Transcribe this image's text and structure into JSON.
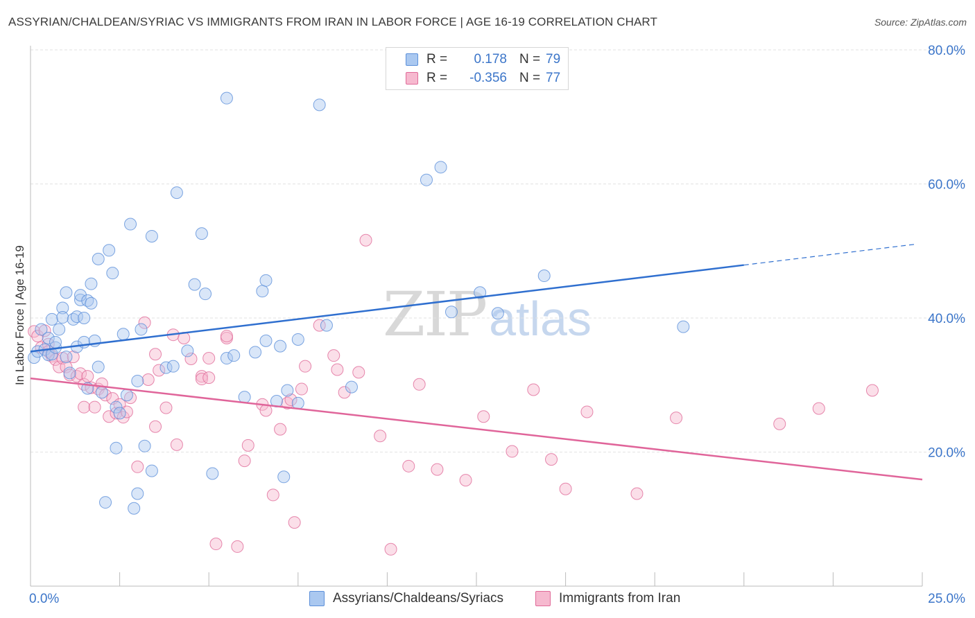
{
  "title": "ASSYRIAN/CHALDEAN/SYRIAC VS IMMIGRANTS FROM IRAN IN LABOR FORCE | AGE 16-19 CORRELATION CHART",
  "source": "Source: ZipAtlas.com",
  "watermark": {
    "zip": "ZIP",
    "atlas": "atlas"
  },
  "colors": {
    "series_blue": "#5b8fd9",
    "series_blue_fill": "#aac8f0",
    "series_pink": "#e06a98",
    "series_pink_fill": "#f6b9cf",
    "blue_line": "#2f6fcf",
    "pink_line": "#e0659a",
    "grid": "#e2e2e2",
    "tick_label": "#3b75c9"
  },
  "legend_top": {
    "rows": [
      {
        "r_label": "R =",
        "r_value": "0.178",
        "n_label": "N =",
        "n_value": "79"
      },
      {
        "r_label": "R =",
        "r_value": "-0.356",
        "n_label": "N =",
        "n_value": "77"
      }
    ]
  },
  "legend_bottom": [
    "Assyrians/Chaldeans/Syriacs",
    "Immigrants from Iran"
  ],
  "chart_data": {
    "type": "scatter",
    "title": "ASSYRIAN/CHALDEAN/SYRIAC VS IMMIGRANTS FROM IRAN IN LABOR FORCE | AGE 16-19 CORRELATION CHART",
    "xlabel": "",
    "ylabel": "In Labor Force | Age 16-19",
    "xlim": [
      0,
      25
    ],
    "ylim": [
      0,
      80
    ],
    "x_tick_labels": [
      "0.0%",
      "25.0%"
    ],
    "y_ticks": [
      20,
      40,
      60,
      80
    ],
    "y_tick_labels": [
      "20.0%",
      "40.0%",
      "60.0%",
      "80.0%"
    ],
    "grid": true,
    "legend_position": "top-center",
    "series": [
      {
        "name": "Assyrians/Chaldeans/Syriacs",
        "R": 0.178,
        "N": 79,
        "trend": {
          "x0": 0,
          "y0": 35.0,
          "x1": 20,
          "y1": 47.9,
          "dashed_to_x": 24.8,
          "dashed_to_y": 51.0
        },
        "points": [
          [
            0.1,
            34.1
          ],
          [
            0.2,
            35.0
          ],
          [
            0.3,
            38.3
          ],
          [
            0.4,
            35.3
          ],
          [
            0.5,
            37.0
          ],
          [
            0.5,
            34.5
          ],
          [
            0.6,
            39.8
          ],
          [
            0.6,
            34.6
          ],
          [
            0.7,
            35.6
          ],
          [
            0.7,
            36.4
          ],
          [
            0.8,
            38.3
          ],
          [
            0.9,
            41.5
          ],
          [
            0.9,
            40.1
          ],
          [
            1.0,
            43.8
          ],
          [
            1.0,
            34.2
          ],
          [
            1.1,
            31.8
          ],
          [
            1.2,
            39.8
          ],
          [
            1.3,
            40.2
          ],
          [
            1.3,
            35.7
          ],
          [
            1.4,
            42.7
          ],
          [
            1.4,
            43.4
          ],
          [
            1.5,
            40.0
          ],
          [
            1.5,
            36.4
          ],
          [
            1.6,
            42.6
          ],
          [
            1.6,
            29.5
          ],
          [
            1.7,
            45.1
          ],
          [
            1.7,
            42.2
          ],
          [
            1.8,
            36.6
          ],
          [
            1.9,
            48.8
          ],
          [
            1.9,
            32.7
          ],
          [
            2.0,
            28.9
          ],
          [
            2.1,
            12.5
          ],
          [
            2.2,
            50.1
          ],
          [
            2.3,
            46.7
          ],
          [
            2.4,
            20.6
          ],
          [
            2.4,
            26.7
          ],
          [
            2.5,
            25.8
          ],
          [
            2.6,
            37.6
          ],
          [
            2.7,
            28.5
          ],
          [
            2.8,
            54.0
          ],
          [
            2.9,
            11.6
          ],
          [
            3.0,
            30.6
          ],
          [
            3.0,
            13.8
          ],
          [
            3.1,
            38.3
          ],
          [
            3.2,
            20.9
          ],
          [
            3.4,
            52.2
          ],
          [
            3.4,
            17.2
          ],
          [
            3.8,
            32.6
          ],
          [
            4.0,
            32.8
          ],
          [
            4.1,
            58.7
          ],
          [
            4.4,
            35.1
          ],
          [
            4.6,
            45.0
          ],
          [
            4.8,
            52.6
          ],
          [
            4.9,
            43.6
          ],
          [
            5.1,
            16.8
          ],
          [
            5.5,
            34.0
          ],
          [
            5.5,
            72.8
          ],
          [
            5.7,
            34.4
          ],
          [
            6.0,
            28.2
          ],
          [
            6.3,
            34.9
          ],
          [
            6.5,
            44.0
          ],
          [
            6.6,
            36.6
          ],
          [
            6.6,
            45.6
          ],
          [
            6.9,
            27.6
          ],
          [
            7.0,
            35.8
          ],
          [
            7.1,
            16.3
          ],
          [
            7.2,
            29.2
          ],
          [
            7.5,
            36.8
          ],
          [
            7.5,
            27.3
          ],
          [
            8.1,
            71.8
          ],
          [
            8.3,
            38.9
          ],
          [
            9.0,
            29.7
          ],
          [
            11.1,
            60.6
          ],
          [
            11.5,
            62.5
          ],
          [
            11.8,
            40.9
          ],
          [
            12.6,
            43.8
          ],
          [
            13.1,
            40.7
          ],
          [
            14.4,
            46.3
          ],
          [
            18.3,
            38.7
          ]
        ]
      },
      {
        "name": "Immigrants from Iran",
        "R": -0.356,
        "N": 77,
        "trend": {
          "x0": 0,
          "y0": 31.0,
          "x1": 25,
          "y1": 15.9
        },
        "points": [
          [
            0.1,
            38.0
          ],
          [
            0.2,
            37.3
          ],
          [
            0.3,
            35.6
          ],
          [
            0.4,
            38.1
          ],
          [
            0.5,
            36.1
          ],
          [
            0.5,
            35.0
          ],
          [
            0.6,
            34.3
          ],
          [
            0.7,
            33.8
          ],
          [
            0.8,
            32.7
          ],
          [
            0.9,
            34.0
          ],
          [
            1.0,
            32.7
          ],
          [
            1.1,
            31.5
          ],
          [
            1.2,
            34.2
          ],
          [
            1.3,
            31.3
          ],
          [
            1.4,
            31.7
          ],
          [
            1.5,
            30.1
          ],
          [
            1.5,
            26.7
          ],
          [
            1.6,
            31.3
          ],
          [
            1.7,
            29.6
          ],
          [
            1.8,
            26.7
          ],
          [
            1.9,
            29.4
          ],
          [
            2.0,
            30.2
          ],
          [
            2.1,
            28.5
          ],
          [
            2.2,
            25.3
          ],
          [
            2.3,
            28.0
          ],
          [
            2.4,
            25.8
          ],
          [
            2.5,
            27.1
          ],
          [
            2.6,
            25.2
          ],
          [
            2.7,
            26.0
          ],
          [
            2.8,
            28.1
          ],
          [
            3.0,
            17.8
          ],
          [
            3.2,
            39.3
          ],
          [
            3.3,
            30.8
          ],
          [
            3.5,
            34.6
          ],
          [
            3.5,
            23.8
          ],
          [
            3.6,
            32.2
          ],
          [
            3.8,
            26.6
          ],
          [
            4.0,
            37.5
          ],
          [
            4.1,
            21.1
          ],
          [
            4.3,
            37.0
          ],
          [
            4.5,
            33.9
          ],
          [
            4.8,
            31.3
          ],
          [
            4.8,
            30.9
          ],
          [
            5.0,
            34.0
          ],
          [
            5.0,
            31.1
          ],
          [
            5.2,
            6.3
          ],
          [
            5.5,
            37.0
          ],
          [
            5.5,
            37.3
          ],
          [
            5.8,
            5.9
          ],
          [
            6.0,
            18.7
          ],
          [
            6.1,
            21.0
          ],
          [
            6.5,
            27.1
          ],
          [
            6.6,
            26.2
          ],
          [
            6.8,
            13.6
          ],
          [
            7.0,
            23.4
          ],
          [
            7.2,
            27.3
          ],
          [
            7.3,
            27.8
          ],
          [
            7.4,
            9.5
          ],
          [
            7.6,
            29.4
          ],
          [
            7.7,
            32.8
          ],
          [
            8.1,
            38.9
          ],
          [
            8.5,
            34.4
          ],
          [
            8.6,
            32.3
          ],
          [
            8.8,
            28.9
          ],
          [
            9.2,
            31.9
          ],
          [
            9.4,
            51.6
          ],
          [
            9.8,
            22.4
          ],
          [
            10.1,
            5.5
          ],
          [
            10.6,
            17.9
          ],
          [
            10.9,
            30.1
          ],
          [
            11.4,
            17.4
          ],
          [
            12.2,
            15.8
          ],
          [
            12.7,
            25.3
          ],
          [
            13.5,
            20.1
          ],
          [
            14.1,
            29.3
          ],
          [
            14.6,
            18.9
          ],
          [
            15.0,
            14.5
          ]
        ],
        "extra_points": [
          [
            15.6,
            26.0
          ],
          [
            17.0,
            13.8
          ],
          [
            18.1,
            25.1
          ],
          [
            21.0,
            24.2
          ],
          [
            22.1,
            26.5
          ],
          [
            23.6,
            29.2
          ]
        ]
      }
    ]
  }
}
